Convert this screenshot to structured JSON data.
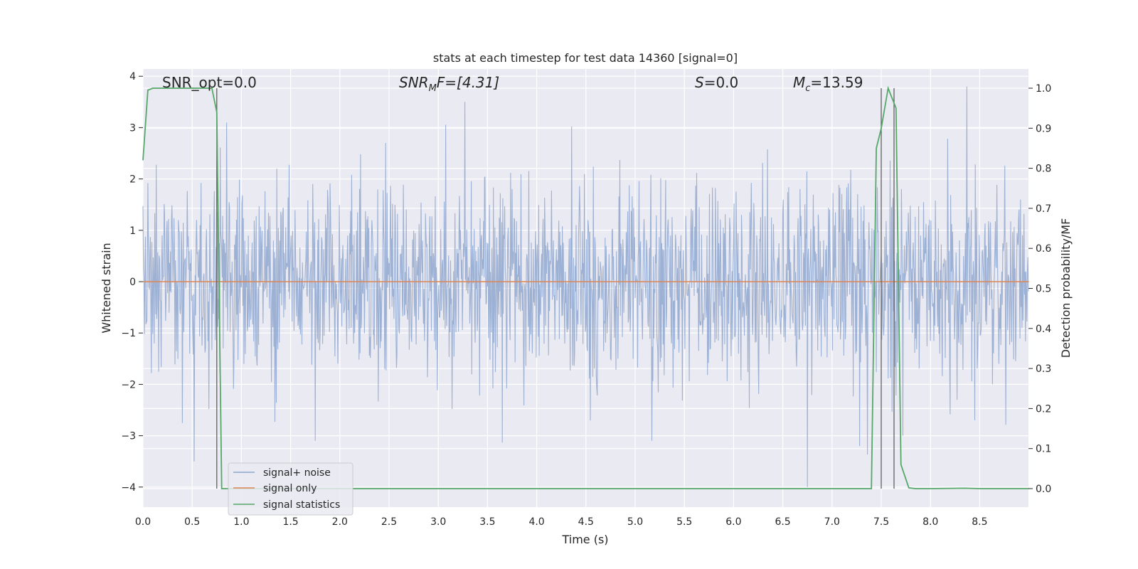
{
  "chart_data": {
    "type": "line",
    "title": "stats at each timestep for test data 14360 [signal=0]",
    "xlabel": "Time (s)",
    "ylabel": "Whitened strain",
    "ylabel_right": "Detection probability/MF",
    "xlim": [
      0.0,
      9.0
    ],
    "ylim": [
      -4.4,
      4.2
    ],
    "ylim_right": [
      -0.05,
      1.04
    ],
    "x_ticks": [
      "0.0",
      "0.5",
      "1.0",
      "1.5",
      "2.0",
      "2.5",
      "3.0",
      "3.5",
      "4.0",
      "4.5",
      "5.0",
      "5.5",
      "6.0",
      "6.5",
      "7.0",
      "7.5",
      "8.0",
      "8.5"
    ],
    "y_ticks": [
      "4",
      "3",
      "2",
      "1",
      "0",
      "−1",
      "−2",
      "−3",
      "−4"
    ],
    "y_ticks_right": [
      "1.0",
      "0.9",
      "0.8",
      "0.7",
      "0.6",
      "0.5",
      "0.4",
      "0.3",
      "0.2",
      "0.1",
      "0.0"
    ],
    "grid": true,
    "legend_placement": "lower-left",
    "annotations": {
      "snr_opt": "SNR_opt=0.0",
      "snr_mf_sym": "SNR",
      "snr_mf_sub": "M",
      "snr_mf_rest": "F=[4.31]",
      "s_sym": "S",
      "s_rest": "=0.0",
      "mc_sym": "M",
      "mc_sub": "c",
      "mc_rest": "=13.59"
    },
    "series": [
      {
        "name": "signal+ noise",
        "color": "#8fa7cf",
        "description_values": {
          "t_start": 0.0,
          "t_end": 9.0,
          "approx_range": [
            -4.0,
            3.8
          ]
        },
        "spikes": [
          [
            0.52,
            -3.5
          ],
          [
            0.85,
            3.1
          ],
          [
            1.75,
            -3.1
          ],
          [
            3.27,
            3.5
          ],
          [
            5.17,
            -3.1
          ],
          [
            6.75,
            -4.0
          ],
          [
            7.28,
            -3.2
          ],
          [
            7.72,
            -3.0
          ],
          [
            8.37,
            3.8
          ],
          [
            8.45,
            -2.7
          ]
        ]
      },
      {
        "name": "signal only",
        "color": "#dd8452",
        "x": [
          0.0,
          9.0
        ],
        "y": [
          0.0,
          0.0
        ]
      },
      {
        "name": "signal statistics",
        "color": "#55a868",
        "axis": "right",
        "x": [
          0.0,
          0.05,
          0.1,
          0.15,
          0.2,
          0.3,
          0.4,
          0.5,
          0.6,
          0.7,
          0.75,
          0.8,
          0.85,
          1.0,
          2.0,
          3.0,
          4.0,
          5.0,
          6.0,
          7.0,
          7.4,
          7.45,
          7.5,
          7.57,
          7.65,
          7.7,
          7.78,
          7.85,
          8.0,
          8.35,
          8.5,
          9.0
        ],
        "y": [
          0.82,
          0.995,
          1.0,
          1.0,
          1.0,
          1.0,
          1.0,
          1.0,
          1.0,
          1.0,
          0.94,
          0.0,
          0.0,
          0.0,
          0.0,
          0.0,
          0.0,
          0.0,
          0.0,
          0.0,
          0.0,
          0.85,
          0.9,
          1.0,
          0.95,
          0.06,
          0.002,
          0.0,
          0.0,
          0.001,
          0.0,
          0.0
        ]
      }
    ],
    "vertical_markers": [
      0.75,
      7.5,
      7.63
    ],
    "legend": {
      "entries": [
        "signal+ noise",
        "signal only",
        "signal statistics"
      ]
    }
  }
}
